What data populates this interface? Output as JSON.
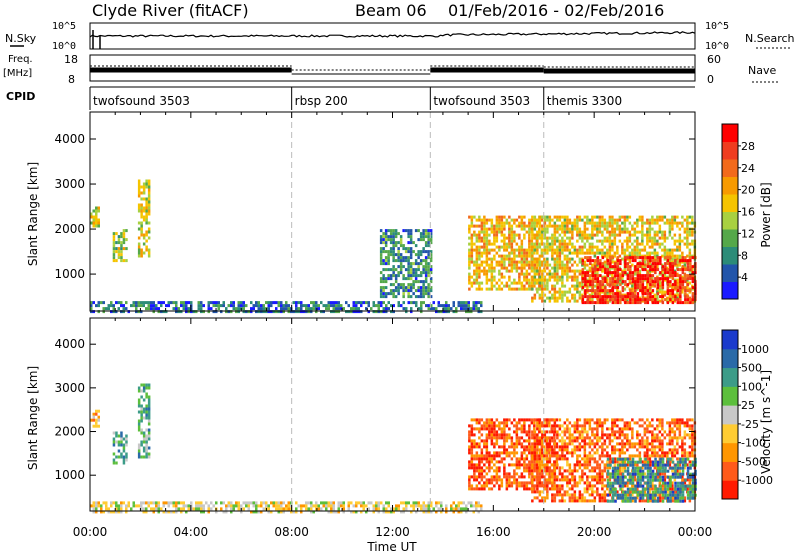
{
  "header": {
    "station": "Clyde River (fitACF)",
    "beam": "Beam 06",
    "date_range": "01/Feb/2016 - 02/Feb/2016"
  },
  "status_panels": {
    "nsky_label": "N.Sky",
    "nsky_ticks": [
      "10^5",
      "10^0"
    ],
    "nsearch_label": "N.Search",
    "nsearch_ticks": [
      "10^5",
      "10^0"
    ],
    "freq_label_top": "Freq.",
    "freq_label_bottom": "[MHz]",
    "freq_ticks": [
      "18",
      "8"
    ],
    "nave_label": "Nave",
    "nave_ticks": [
      "60",
      "0"
    ],
    "cpid_label": "CPID"
  },
  "cpid_segments": [
    {
      "label": "twofsound 3503",
      "start_hour": 0.0
    },
    {
      "label": "rbsp 200",
      "start_hour": 8.0
    },
    {
      "label": "twofsound 3503",
      "start_hour": 13.5
    },
    {
      "label": "themis 3300",
      "start_hour": 18.0
    }
  ],
  "chart_data": [
    {
      "type": "heatmap",
      "name": "power",
      "ylabel": "Slant Range [km]",
      "yticks": [
        "4000",
        "3000",
        "2000",
        "1000"
      ],
      "ylim": [
        180,
        4600
      ],
      "colorbar_label": "Power [dB]",
      "colorbar_ticks": [
        "28",
        "24",
        "20",
        "16",
        "12",
        "8",
        "4"
      ],
      "colorbar_range": [
        0,
        32
      ],
      "colors": [
        "#1a1aff",
        "#2255aa",
        "#2c8c78",
        "#55a84a",
        "#a8d040",
        "#f5c400",
        "#f79a00",
        "#f26a1b",
        "#ef3c1f",
        "#ff0000"
      ],
      "regions": [
        {
          "hours": [
            0.0,
            0.3
          ],
          "range_km": [
            2100,
            2500
          ],
          "level": 0.45
        },
        {
          "hours": [
            0.9,
            1.4
          ],
          "range_km": [
            1300,
            2000
          ],
          "level": 0.45
        },
        {
          "hours": [
            1.9,
            2.3
          ],
          "range_km": [
            1400,
            3100
          ],
          "level": 0.5
        },
        {
          "hours": [
            0.0,
            15.5
          ],
          "range_km": [
            180,
            400
          ],
          "level": 0.2
        },
        {
          "hours": [
            11.5,
            13.5
          ],
          "range_km": [
            500,
            2000
          ],
          "level": 0.25
        },
        {
          "hours": [
            15.0,
            18.0
          ],
          "range_km": [
            700,
            2300
          ],
          "level": 0.6
        },
        {
          "hours": [
            17.5,
            24.0
          ],
          "range_km": [
            400,
            2300
          ],
          "level": 0.55
        },
        {
          "hours": [
            19.5,
            24.0
          ],
          "range_km": [
            400,
            1400
          ],
          "level": 0.9
        }
      ]
    },
    {
      "type": "heatmap",
      "name": "velocity",
      "ylabel": "Slant Range [km]",
      "yticks": [
        "4000",
        "3000",
        "2000",
        "1000"
      ],
      "ylim": [
        180,
        4600
      ],
      "colorbar_label": "Velocity [m s^-1]",
      "colorbar_ticks": [
        "1000",
        "500",
        "100",
        "25",
        "-25",
        "-100",
        "-500",
        "-1000"
      ],
      "colorbar_range": [
        -1000,
        1000
      ],
      "colors": [
        "#ff1a00",
        "#ff5a1a",
        "#ff9600",
        "#ffcc33",
        "#c8c8c8",
        "#5cbf3c",
        "#3c9c88",
        "#2a6aa8",
        "#1a3acc"
      ],
      "regions": [
        {
          "hours": [
            0.0,
            0.3
          ],
          "range_km": [
            2100,
            2500
          ],
          "level": 0.3
        },
        {
          "hours": [
            0.9,
            1.4
          ],
          "range_km": [
            1300,
            2000
          ],
          "level": 0.7
        },
        {
          "hours": [
            1.9,
            2.3
          ],
          "range_km": [
            1400,
            3100
          ],
          "level": 0.65
        },
        {
          "hours": [
            0.0,
            15.5
          ],
          "range_km": [
            180,
            400
          ],
          "level": 0.45
        },
        {
          "hours": [
            15.0,
            18.5
          ],
          "range_km": [
            700,
            2300
          ],
          "level": 0.15
        },
        {
          "hours": [
            17.5,
            24.0
          ],
          "range_km": [
            400,
            2300
          ],
          "level": 0.2
        },
        {
          "hours": [
            20.5,
            24.0
          ],
          "range_km": [
            400,
            1400
          ],
          "level": 0.75
        }
      ]
    }
  ],
  "time_axis": {
    "ticks": [
      "00:00",
      "04:00",
      "08:00",
      "12:00",
      "16:00",
      "20:00",
      "00:00"
    ],
    "label": "Time UT"
  }
}
